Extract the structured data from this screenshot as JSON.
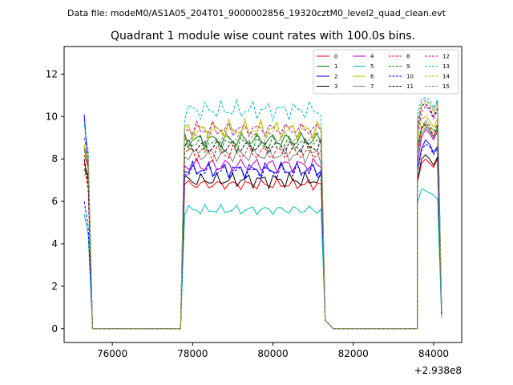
{
  "chart_data": {
    "type": "line",
    "suptitle": "Data file: modeM0/AS1A05_204T01_9000002856_19320cztM0_level2_quad_clean.evt",
    "title": "Quadrant 1 module wise count rates with 100.0s bins.",
    "xlabel": "",
    "ylabel": "",
    "x_offset_label": "+2.938e8",
    "xlim": [
      74800,
      84700
    ],
    "ylim": [
      -0.65,
      13.3
    ],
    "xticks": [
      76000,
      78000,
      80000,
      82000,
      84000
    ],
    "yticks": [
      0,
      2,
      4,
      6,
      8,
      10,
      12
    ],
    "grid": false,
    "legend": {
      "position": "top-right",
      "columns": 4
    },
    "segments": [
      {
        "x_start": 75300,
        "x_step": 100,
        "n": 3
      },
      {
        "x_start": 75500,
        "x_step": 100,
        "n": 23,
        "constant": 0
      },
      {
        "x_start": 77800,
        "x_step": 100,
        "n": 36
      },
      {
        "x_start": 81500,
        "x_step": 100,
        "n": 22,
        "constant": 0
      },
      {
        "x_start": 83600,
        "x_step": 100,
        "n": 7
      }
    ],
    "series": [
      {
        "name": "0",
        "color": "#ff0000",
        "dash": false,
        "start": [
          8.2,
          7.6,
          0.5
        ],
        "plateau": 6.8,
        "plateau_amp": 0.3,
        "end": [
          6.9,
          7.8,
          8.0,
          7.8,
          7.6,
          8.0,
          0.8
        ]
      },
      {
        "name": "1",
        "color": "#008000",
        "dash": false,
        "start": [
          8.5,
          7.8,
          0.5
        ],
        "plateau": 8.9,
        "plateau_amp": 0.45,
        "end": [
          8.5,
          9.5,
          9.6,
          9.4,
          9.0,
          9.5,
          0.8
        ]
      },
      {
        "name": "2",
        "color": "#0000ff",
        "dash": false,
        "start": [
          10.1,
          7.4,
          0.5
        ],
        "plateau": 7.5,
        "plateau_amp": 0.4,
        "end": [
          7.5,
          8.5,
          8.9,
          8.7,
          8.3,
          8.6,
          0.7
        ]
      },
      {
        "name": "3",
        "color": "#000000",
        "dash": false,
        "start": [
          7.5,
          7.2,
          0.4
        ],
        "plateau": 7.0,
        "plateau_amp": 0.4,
        "end": [
          7.0,
          8.0,
          8.2,
          8.0,
          7.7,
          8.1,
          0.7
        ]
      },
      {
        "name": "4",
        "color": "#bf00bf",
        "dash": false,
        "start": [
          7.9,
          7.0,
          0.4
        ],
        "plateau": 7.7,
        "plateau_amp": 0.45,
        "end": [
          7.8,
          9.0,
          9.4,
          9.2,
          8.9,
          9.3,
          0.8
        ]
      },
      {
        "name": "5",
        "color": "#00bfbf",
        "dash": false,
        "start": [
          5.4,
          4.4,
          0.3
        ],
        "plateau": 5.6,
        "plateau_amp": 0.28,
        "end": [
          5.9,
          6.6,
          6.5,
          6.4,
          6.3,
          6.1,
          0.5
        ]
      },
      {
        "name": "6",
        "color": "#bfbf00",
        "dash": false,
        "start": [
          8.6,
          7.9,
          0.5
        ],
        "plateau": 9.4,
        "plateau_amp": 0.5,
        "end": [
          8.9,
          9.9,
          10.0,
          9.8,
          9.5,
          9.9,
          0.8
        ]
      },
      {
        "name": "7",
        "color": "#808080",
        "dash": false,
        "start": [
          7.2,
          7.5,
          0.5
        ],
        "plateau": 8.2,
        "plateau_amp": 0.45,
        "end": [
          8.2,
          9.2,
          9.5,
          9.3,
          9.0,
          9.4,
          0.8
        ]
      },
      {
        "name": "8",
        "color": "#ff0000",
        "dash": true,
        "start": [
          7.8,
          6.5,
          0.5
        ],
        "plateau": 8.3,
        "plateau_amp": 0.5,
        "end": [
          8.4,
          9.4,
          9.7,
          9.5,
          9.1,
          9.6,
          0.8
        ]
      },
      {
        "name": "9",
        "color": "#008000",
        "dash": true,
        "start": [
          7.5,
          7.3,
          0.5
        ],
        "plateau": 8.7,
        "plateau_amp": 0.45,
        "end": [
          8.6,
          9.5,
          9.8,
          9.6,
          9.3,
          9.7,
          0.8
        ]
      },
      {
        "name": "10",
        "color": "#0000ff",
        "dash": true,
        "start": [
          6.0,
          4.8,
          0.4
        ],
        "plateau": 7.4,
        "plateau_amp": 0.4,
        "end": [
          7.4,
          8.4,
          8.7,
          8.6,
          8.2,
          8.5,
          0.7
        ]
      },
      {
        "name": "11",
        "color": "#000000",
        "dash": true,
        "start": [
          8.0,
          6.8,
          0.5
        ],
        "plateau": 8.6,
        "plateau_amp": 0.45,
        "end": [
          9.4,
          10.5,
          10.6,
          10.4,
          10.0,
          10.4,
          0.9
        ]
      },
      {
        "name": "12",
        "color": "#bf00bf",
        "dash": true,
        "start": [
          9.0,
          8.2,
          0.5
        ],
        "plateau": 9.4,
        "plateau_amp": 0.4,
        "end": [
          9.2,
          10.2,
          10.5,
          10.3,
          9.9,
          10.3,
          0.9
        ]
      },
      {
        "name": "13",
        "color": "#00bfbf",
        "dash": true,
        "start": [
          9.6,
          8.4,
          0.6
        ],
        "plateau": 10.3,
        "plateau_amp": 0.5,
        "end": [
          10.1,
          10.8,
          10.9,
          10.8,
          10.4,
          10.8,
          0.9
        ]
      },
      {
        "name": "14",
        "color": "#bfbf00",
        "dash": true,
        "start": [
          8.7,
          8.0,
          0.5
        ],
        "plateau": 9.3,
        "plateau_amp": 0.45,
        "end": [
          9.6,
          10.5,
          10.7,
          10.6,
          10.2,
          10.6,
          0.9
        ]
      },
      {
        "name": "15",
        "color": "#808080",
        "dash": true,
        "start": [
          8.4,
          7.7,
          0.5
        ],
        "plateau": 9.0,
        "plateau_amp": 0.45,
        "end": [
          9.8,
          10.6,
          10.8,
          10.6,
          10.3,
          10.7,
          0.9
        ]
      }
    ]
  }
}
